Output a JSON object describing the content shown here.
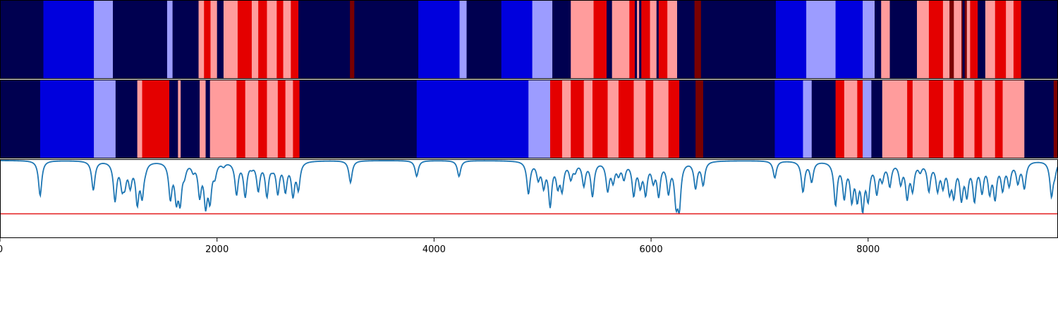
{
  "chart_data": {
    "type": "heatmap",
    "title": "",
    "xlabel": "",
    "ylabel": "",
    "xlim": [
      0,
      9750
    ],
    "grid": false,
    "colors": {
      "level0": "#000050",
      "level1": "#0000dd",
      "level2": "#9c9cff",
      "level3": "#ff9c9c",
      "level4": "#e40000",
      "level5": "#7a0000",
      "line": "#1f77b4",
      "threshold": "#e41a1c"
    },
    "xticks": [
      {
        "value": 0,
        "label": "0"
      },
      {
        "value": 2000,
        "label": "2000"
      },
      {
        "value": 4000,
        "label": "4000"
      },
      {
        "value": 6000,
        "label": "6000"
      },
      {
        "value": 8000,
        "label": "8000"
      }
    ],
    "rows": [
      {
        "segments": [
          [
            0,
            400,
            0
          ],
          [
            400,
            865,
            1
          ],
          [
            865,
            1040,
            2
          ],
          [
            1040,
            1540,
            0
          ],
          [
            1540,
            1590,
            2
          ],
          [
            1590,
            1830,
            0
          ],
          [
            1830,
            1880,
            3
          ],
          [
            1880,
            1940,
            4
          ],
          [
            1940,
            2000,
            3
          ],
          [
            2000,
            2060,
            0
          ],
          [
            2060,
            2190,
            3
          ],
          [
            2190,
            2320,
            4
          ],
          [
            2320,
            2380,
            3
          ],
          [
            2380,
            2460,
            4
          ],
          [
            2460,
            2550,
            3
          ],
          [
            2550,
            2610,
            4
          ],
          [
            2610,
            2680,
            3
          ],
          [
            2680,
            2750,
            4
          ],
          [
            2750,
            3225,
            0
          ],
          [
            3225,
            3265,
            5
          ],
          [
            3265,
            3855,
            0
          ],
          [
            3855,
            4235,
            1
          ],
          [
            4235,
            4300,
            2
          ],
          [
            4300,
            4620,
            0
          ],
          [
            4620,
            4905,
            1
          ],
          [
            4905,
            5090,
            2
          ],
          [
            5090,
            5260,
            0
          ],
          [
            5260,
            5470,
            3
          ],
          [
            5470,
            5590,
            4
          ],
          [
            5590,
            5640,
            0
          ],
          [
            5640,
            5800,
            3
          ],
          [
            5800,
            5850,
            4
          ],
          [
            5850,
            5870,
            0
          ],
          [
            5870,
            5890,
            3
          ],
          [
            5890,
            5910,
            0
          ],
          [
            5910,
            5990,
            4
          ],
          [
            5990,
            6050,
            3
          ],
          [
            6050,
            6070,
            0
          ],
          [
            6070,
            6150,
            4
          ],
          [
            6150,
            6240,
            3
          ],
          [
            6240,
            6400,
            0
          ],
          [
            6400,
            6460,
            5
          ],
          [
            6460,
            7150,
            0
          ],
          [
            7150,
            7430,
            1
          ],
          [
            7430,
            7700,
            2
          ],
          [
            7700,
            7950,
            1
          ],
          [
            7950,
            8060,
            2
          ],
          [
            8060,
            8120,
            0
          ],
          [
            8120,
            8200,
            3
          ],
          [
            8200,
            8450,
            0
          ],
          [
            8450,
            8560,
            3
          ],
          [
            8560,
            8690,
            4
          ],
          [
            8690,
            8750,
            3
          ],
          [
            8750,
            8790,
            5
          ],
          [
            8790,
            8860,
            3
          ],
          [
            8860,
            8870,
            5
          ],
          [
            8870,
            8890,
            0
          ],
          [
            8890,
            8910,
            5
          ],
          [
            8910,
            8940,
            3
          ],
          [
            8940,
            9010,
            4
          ],
          [
            9010,
            9080,
            0
          ],
          [
            9080,
            9170,
            3
          ],
          [
            9170,
            9270,
            4
          ],
          [
            9270,
            9340,
            3
          ],
          [
            9340,
            9410,
            4
          ],
          [
            9410,
            9750,
            0
          ]
        ]
      },
      {
        "segments": [
          [
            0,
            370,
            0
          ],
          [
            370,
            865,
            1
          ],
          [
            865,
            1065,
            2
          ],
          [
            1065,
            1265,
            0
          ],
          [
            1265,
            1310,
            3
          ],
          [
            1310,
            1560,
            4
          ],
          [
            1560,
            1640,
            0
          ],
          [
            1640,
            1665,
            3
          ],
          [
            1665,
            1840,
            0
          ],
          [
            1840,
            1895,
            3
          ],
          [
            1895,
            1935,
            0
          ],
          [
            1935,
            2180,
            3
          ],
          [
            2180,
            2260,
            4
          ],
          [
            2260,
            2380,
            3
          ],
          [
            2380,
            2460,
            4
          ],
          [
            2460,
            2560,
            3
          ],
          [
            2560,
            2630,
            4
          ],
          [
            2630,
            2700,
            3
          ],
          [
            2700,
            2760,
            4
          ],
          [
            2760,
            3840,
            0
          ],
          [
            3840,
            4870,
            1
          ],
          [
            4870,
            5070,
            2
          ],
          [
            5070,
            5180,
            4
          ],
          [
            5180,
            5260,
            3
          ],
          [
            5260,
            5380,
            4
          ],
          [
            5380,
            5460,
            3
          ],
          [
            5460,
            5600,
            4
          ],
          [
            5600,
            5700,
            3
          ],
          [
            5700,
            5840,
            4
          ],
          [
            5840,
            5950,
            3
          ],
          [
            5950,
            6020,
            4
          ],
          [
            6020,
            6160,
            3
          ],
          [
            6160,
            6260,
            4
          ],
          [
            6260,
            6410,
            0
          ],
          [
            6410,
            6480,
            5
          ],
          [
            6480,
            7140,
            0
          ],
          [
            7140,
            7400,
            1
          ],
          [
            7400,
            7480,
            2
          ],
          [
            7480,
            7700,
            0
          ],
          [
            7700,
            7780,
            4
          ],
          [
            7780,
            7900,
            3
          ],
          [
            7900,
            7950,
            4
          ],
          [
            7950,
            8030,
            2
          ],
          [
            8030,
            8130,
            0
          ],
          [
            8130,
            8360,
            3
          ],
          [
            8360,
            8410,
            4
          ],
          [
            8410,
            8560,
            3
          ],
          [
            8560,
            8690,
            4
          ],
          [
            8690,
            8790,
            3
          ],
          [
            8790,
            8880,
            4
          ],
          [
            8880,
            8980,
            3
          ],
          [
            8980,
            9050,
            4
          ],
          [
            9050,
            9170,
            3
          ],
          [
            9170,
            9240,
            4
          ],
          [
            9240,
            9440,
            3
          ],
          [
            9440,
            9710,
            0
          ],
          [
            9710,
            9750,
            5
          ]
        ]
      }
    ],
    "line_series": {
      "baseline": 0.98,
      "ylim": [
        -0.3,
        1.0
      ],
      "threshold": 0.1,
      "dips": [
        [
          370,
          0.4
        ],
        [
          860,
          0.5
        ],
        [
          1060,
          0.35
        ],
        [
          1125,
          0.63
        ],
        [
          1150,
          0.68
        ],
        [
          1200,
          0.62
        ],
        [
          1265,
          0.34
        ],
        [
          1310,
          0.45
        ],
        [
          1340,
          0.92
        ],
        [
          1570,
          0.4
        ],
        [
          1625,
          0.42
        ],
        [
          1660,
          0.38
        ],
        [
          1700,
          0.82
        ],
        [
          1780,
          0.86
        ],
        [
          1840,
          0.45
        ],
        [
          1895,
          0.32
        ],
        [
          1935,
          0.4
        ],
        [
          1980,
          0.78
        ],
        [
          2060,
          0.92
        ],
        [
          2180,
          0.45
        ],
        [
          2260,
          0.42
        ],
        [
          2320,
          0.92
        ],
        [
          2380,
          0.52
        ],
        [
          2460,
          0.43
        ],
        [
          2510,
          0.92
        ],
        [
          2560,
          0.48
        ],
        [
          2630,
          0.52
        ],
        [
          2700,
          0.45
        ],
        [
          2750,
          0.55
        ],
        [
          3230,
          0.62
        ],
        [
          3840,
          0.72
        ],
        [
          4230,
          0.72
        ],
        [
          4870,
          0.45
        ],
        [
          4960,
          0.72
        ],
        [
          5010,
          0.6
        ],
        [
          5070,
          0.28
        ],
        [
          5140,
          0.62
        ],
        [
          5180,
          0.55
        ],
        [
          5260,
          0.72
        ],
        [
          5300,
          0.85
        ],
        [
          5380,
          0.6
        ],
        [
          5460,
          0.42
        ],
        [
          5600,
          0.52
        ],
        [
          5650,
          0.68
        ],
        [
          5700,
          0.8
        ],
        [
          5750,
          0.72
        ],
        [
          5840,
          0.45
        ],
        [
          5900,
          0.62
        ],
        [
          5950,
          0.48
        ],
        [
          6020,
          0.7
        ],
        [
          6070,
          0.45
        ],
        [
          6160,
          0.5
        ],
        [
          6230,
          0.38
        ],
        [
          6260,
          0.3
        ],
        [
          6410,
          0.55
        ],
        [
          6480,
          0.6
        ],
        [
          7140,
          0.7
        ],
        [
          7400,
          0.48
        ],
        [
          7480,
          0.65
        ],
        [
          7700,
          0.28
        ],
        [
          7780,
          0.42
        ],
        [
          7850,
          0.4
        ],
        [
          7900,
          0.45
        ],
        [
          7950,
          0.28
        ],
        [
          8000,
          0.42
        ],
        [
          8080,
          0.5
        ],
        [
          8130,
          0.72
        ],
        [
          8200,
          0.6
        ],
        [
          8300,
          0.65
        ],
        [
          8360,
          0.42
        ],
        [
          8410,
          0.55
        ],
        [
          8480,
          0.85
        ],
        [
          8560,
          0.52
        ],
        [
          8640,
          0.55
        ],
        [
          8690,
          0.62
        ],
        [
          8750,
          0.55
        ],
        [
          8790,
          0.48
        ],
        [
          8860,
          0.42
        ],
        [
          8910,
          0.48
        ],
        [
          8980,
          0.38
        ],
        [
          9050,
          0.52
        ],
        [
          9120,
          0.52
        ],
        [
          9170,
          0.42
        ],
        [
          9240,
          0.55
        ],
        [
          9300,
          0.62
        ],
        [
          9380,
          0.65
        ],
        [
          9440,
          0.55
        ],
        [
          9690,
          0.42
        ],
        [
          9720,
          0.82
        ]
      ]
    }
  }
}
